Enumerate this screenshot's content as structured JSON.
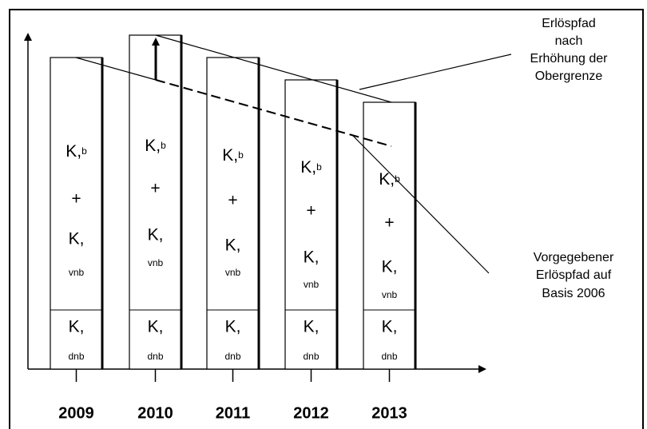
{
  "bars": [
    {
      "year": "2009",
      "kb": [
        "K,",
        "b"
      ],
      "plus": "+",
      "kv": [
        "K,",
        "vnb"
      ],
      "kd": [
        "K,",
        "dnb"
      ]
    },
    {
      "year": "2010",
      "kb": [
        "K,",
        "b"
      ],
      "plus": "+",
      "kv": [
        "K,",
        "vnb"
      ],
      "kd": [
        "K,",
        "dnb"
      ]
    },
    {
      "year": "2011",
      "kb": [
        "K,",
        "b"
      ],
      "plus": "+",
      "kv": [
        "K,",
        "vnb"
      ],
      "kd": [
        "K,",
        "dnb"
      ]
    },
    {
      "year": "2012",
      "kb": [
        "K,",
        "b"
      ],
      "plus": "+",
      "kv": [
        "K,",
        "vnb"
      ],
      "kd": [
        "K,",
        "dnb"
      ]
    },
    {
      "year": "2013",
      "kb": [
        "K,",
        "b"
      ],
      "plus": "+",
      "kv": [
        "K,",
        "vnb"
      ],
      "kd": [
        "K,",
        "dnb"
      ]
    }
  ],
  "annotations": {
    "raised": [
      "Erlöspfad",
      "nach",
      "Erhöhung der",
      "Obergrenze"
    ],
    "base": [
      "Vorgegebener",
      "Erlöspfad auf",
      "Basis 2006"
    ]
  }
}
